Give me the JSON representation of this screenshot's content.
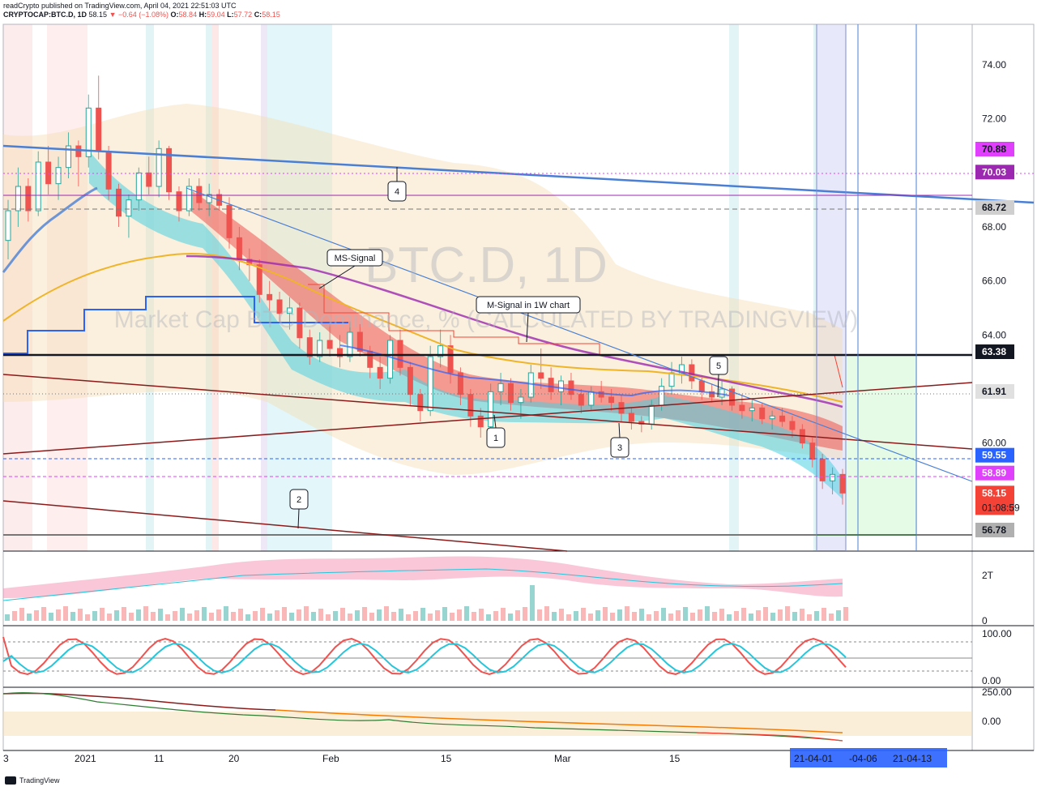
{
  "header": {
    "line1": "readCrypto published on TradingView.com, April 04, 2021 22:51:03 UTC",
    "symbol": "CRYPTOCAP:BTC.D, 1D",
    "last": "58.15",
    "change": "▼ −0.64 (−1.08%)",
    "o_label": "O:",
    "o_value": "58.84",
    "h_label": "H:",
    "h_value": "59.04",
    "l_label": "L:",
    "l_value": "57.72",
    "c_label": "C:",
    "c_value": "58.15"
  },
  "watermark": {
    "symbol": "BTC.D, 1D",
    "description": "Market Cap BTC Dominance, % (CALCULATED BY TRADINGVIEW)"
  },
  "footer": {
    "brand": "TradingView"
  },
  "colors": {
    "up": "#26a69a",
    "down": "#ef5350",
    "trend_blue": "#4a7fd4",
    "support": "#131722",
    "magenta": "#e040fb",
    "purple": "#9c27b0",
    "label_blue": "#2962ff",
    "label_red": "#f44336",
    "channel": "#8b1a1a",
    "cloud": "#f5deb3"
  },
  "chart_data": {
    "type": "candlestick",
    "symbol": "CRYPTOCAP:BTC.D",
    "interval": "1D",
    "ylim": [
      56.0,
      75.5
    ],
    "y_ticks": [
      74.0,
      72.0,
      68.0,
      66.0,
      64.0,
      60.0
    ],
    "y_tick_labels": [
      "74.00",
      "72.00",
      "68.00",
      "66.00",
      "64.00",
      "60.00"
    ],
    "x_ticks": [
      "3",
      "2021",
      "11",
      "20",
      "Feb",
      "15",
      "Mar",
      "15"
    ],
    "x_highlight_ticks": [
      "21-04-01",
      "-04-06",
      "21-04-13"
    ],
    "price_labels": [
      {
        "value": 70.88,
        "text": "70.88",
        "bg": "#e040fb",
        "fg": "#131722"
      },
      {
        "value": 70.03,
        "text": "70.03",
        "bg": "#9c27b0",
        "fg": "#ffffff"
      },
      {
        "value": 68.72,
        "text": "68.72",
        "bg": "#cfcfcf",
        "fg": "#131722"
      },
      {
        "value": 63.38,
        "text": "63.38",
        "bg": "#131722",
        "fg": "#ffffff"
      },
      {
        "value": 61.91,
        "text": "61.91",
        "bg": "#e0e0e0",
        "fg": "#131722"
      },
      {
        "value": 59.55,
        "text": "59.55",
        "bg": "#2962ff",
        "fg": "#ffffff"
      },
      {
        "value": 58.89,
        "text": "58.89",
        "bg": "#e040fb",
        "fg": "#ffffff"
      },
      {
        "value": 58.15,
        "text": "58.15",
        "sub": "01:08:59",
        "bg": "#f44336",
        "fg": "#ffffff"
      },
      {
        "value": 56.78,
        "text": "56.78",
        "bg": "#b0b0b0",
        "fg": "#131722"
      }
    ],
    "candles": [
      [
        67.5,
        69.0,
        66.8,
        68.6
      ],
      [
        68.6,
        70.2,
        68.0,
        69.5
      ],
      [
        69.5,
        69.8,
        68.2,
        68.6
      ],
      [
        68.6,
        70.8,
        68.4,
        70.4
      ],
      [
        70.4,
        71.0,
        69.2,
        69.6
      ],
      [
        69.6,
        70.6,
        69.0,
        70.2
      ],
      [
        70.2,
        71.5,
        69.8,
        71.0
      ],
      [
        71.0,
        71.2,
        69.5,
        70.6
      ],
      [
        70.6,
        72.9,
        70.2,
        72.4
      ],
      [
        72.4,
        73.6,
        70.5,
        70.8
      ],
      [
        70.8,
        71.0,
        69.0,
        69.4
      ],
      [
        69.4,
        69.6,
        68.0,
        68.4
      ],
      [
        68.4,
        69.2,
        67.6,
        69.0
      ],
      [
        69.0,
        70.2,
        68.6,
        70.0
      ],
      [
        70.0,
        70.6,
        69.2,
        69.5
      ],
      [
        69.5,
        71.2,
        69.1,
        70.9
      ],
      [
        70.9,
        71.0,
        69.0,
        69.3
      ],
      [
        69.3,
        69.5,
        68.2,
        68.6
      ],
      [
        68.6,
        69.8,
        68.4,
        69.5
      ],
      [
        69.5,
        69.8,
        68.6,
        68.9
      ],
      [
        68.9,
        69.6,
        68.4,
        69.2
      ],
      [
        69.2,
        69.4,
        68.6,
        68.8
      ],
      [
        68.8,
        69.1,
        67.2,
        67.6
      ],
      [
        67.6,
        68.0,
        66.4,
        66.8
      ],
      [
        66.8,
        67.2,
        66.0,
        66.6
      ],
      [
        66.6,
        66.8,
        65.2,
        65.5
      ],
      [
        65.5,
        66.0,
        64.9,
        65.3
      ],
      [
        65.3,
        65.6,
        64.5,
        64.8
      ],
      [
        64.8,
        65.4,
        64.2,
        65.0
      ],
      [
        65.0,
        65.2,
        63.5,
        63.9
      ],
      [
        63.9,
        64.2,
        62.9,
        63.2
      ],
      [
        63.2,
        64.1,
        63.0,
        63.8
      ],
      [
        63.8,
        64.4,
        63.2,
        63.5
      ],
      [
        63.5,
        64.0,
        62.8,
        63.2
      ],
      [
        63.2,
        64.5,
        63.0,
        64.1
      ],
      [
        64.1,
        64.4,
        63.2,
        63.4
      ],
      [
        63.4,
        63.6,
        62.4,
        62.8
      ],
      [
        62.8,
        63.2,
        62.0,
        62.4
      ],
      [
        62.4,
        64.0,
        62.2,
        63.8
      ],
      [
        63.8,
        64.2,
        62.5,
        62.8
      ],
      [
        62.8,
        63.0,
        61.4,
        61.8
      ],
      [
        61.8,
        62.0,
        60.8,
        61.2
      ],
      [
        61.2,
        63.6,
        61.0,
        63.2
      ],
      [
        63.2,
        64.2,
        62.8,
        63.6
      ],
      [
        63.6,
        64.0,
        62.2,
        62.6
      ],
      [
        62.6,
        62.8,
        61.4,
        61.8
      ],
      [
        61.8,
        62.0,
        60.6,
        61.0
      ],
      [
        61.0,
        61.3,
        60.2,
        60.6
      ],
      [
        60.6,
        62.2,
        60.4,
        61.9
      ],
      [
        61.9,
        62.6,
        61.4,
        62.2
      ],
      [
        62.2,
        62.4,
        61.2,
        61.5
      ],
      [
        61.5,
        62.0,
        60.9,
        61.7
      ],
      [
        61.7,
        62.9,
        61.5,
        62.6
      ],
      [
        62.6,
        63.5,
        62.0,
        62.4
      ],
      [
        62.4,
        62.8,
        61.6,
        61.9
      ],
      [
        61.9,
        62.5,
        61.4,
        62.3
      ],
      [
        62.3,
        62.6,
        61.6,
        61.8
      ],
      [
        61.8,
        62.0,
        61.1,
        61.4
      ],
      [
        61.4,
        62.1,
        61.2,
        61.9
      ],
      [
        61.9,
        62.3,
        61.5,
        61.7
      ],
      [
        61.7,
        62.0,
        61.2,
        61.5
      ],
      [
        61.5,
        61.8,
        60.8,
        61.1
      ],
      [
        61.1,
        61.3,
        60.5,
        60.8
      ],
      [
        60.8,
        61.0,
        60.4,
        60.7
      ],
      [
        60.7,
        61.6,
        60.5,
        61.4
      ],
      [
        61.4,
        62.4,
        61.2,
        62.1
      ],
      [
        62.1,
        63.0,
        61.8,
        62.6
      ],
      [
        62.6,
        63.2,
        62.2,
        62.9
      ],
      [
        62.9,
        63.1,
        62.0,
        62.3
      ],
      [
        62.3,
        62.5,
        61.6,
        61.9
      ],
      [
        61.9,
        62.2,
        61.5,
        61.7
      ],
      [
        61.7,
        62.3,
        61.4,
        62.0
      ],
      [
        62.0,
        62.1,
        61.2,
        61.4
      ],
      [
        61.4,
        61.8,
        60.9,
        61.2
      ],
      [
        61.2,
        61.6,
        60.8,
        61.3
      ],
      [
        61.3,
        61.5,
        60.7,
        60.9
      ],
      [
        60.9,
        61.2,
        60.5,
        61.0
      ],
      [
        61.0,
        61.3,
        60.6,
        60.8
      ],
      [
        60.8,
        61.0,
        60.2,
        60.5
      ],
      [
        60.5,
        60.7,
        59.8,
        60.0
      ],
      [
        60.0,
        60.2,
        59.1,
        59.4
      ],
      [
        59.4,
        59.6,
        58.3,
        58.6
      ],
      [
        58.6,
        59.1,
        58.1,
        58.84
      ],
      [
        58.84,
        59.04,
        57.72,
        58.15
      ]
    ],
    "lines": [
      {
        "name": "",
        "type": "trendline",
        "from": [
          0,
          70.95
        ],
        "to": [
          1260,
          68.95
        ]
      },
      {
        "name": "",
        "type": "horizontal",
        "value": 63.38
      },
      {
        "name": "",
        "type": "horizontal",
        "value": 56.78
      }
    ],
    "annotations": [
      {
        "text": "MS-Signal"
      },
      {
        "text": "M-Signal in 1W chart"
      },
      {
        "text": "1"
      },
      {
        "text": "2"
      },
      {
        "text": "3"
      },
      {
        "text": "4"
      },
      {
        "text": "5"
      }
    ],
    "panes": [
      {
        "name": "volume",
        "y_ticks": [
          "2T",
          "0"
        ]
      },
      {
        "name": "oscillator",
        "y_ticks": [
          "100.00",
          "0.00"
        ]
      },
      {
        "name": "momentum",
        "y_ticks": [
          "250.00",
          "0.00"
        ]
      }
    ]
  }
}
